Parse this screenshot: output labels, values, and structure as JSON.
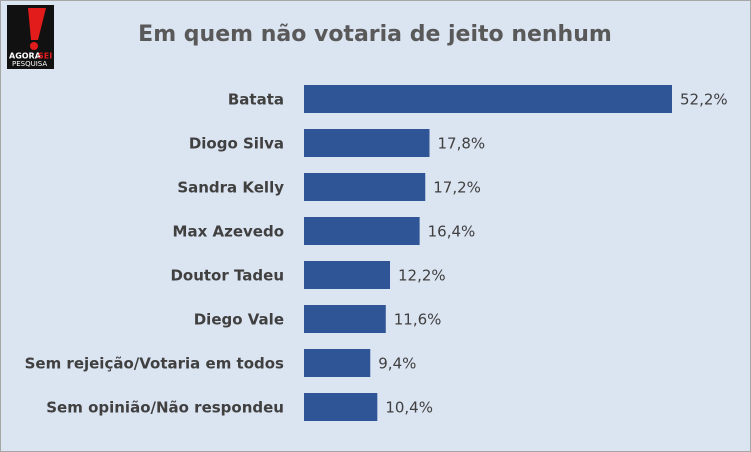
{
  "logo": {
    "brand": "AGORA",
    "brand_accent": "SEI",
    "tagline": "PESQUISA"
  },
  "chart_data": {
    "type": "bar",
    "orientation": "horizontal",
    "title": "Em quem não votaria de jeito nenhum",
    "categories": [
      "Batata",
      "Diogo Silva",
      "Sandra Kelly",
      "Max Azevedo",
      "Doutor Tadeu",
      "Diego Vale",
      "Sem rejeição/Votaria em todos",
      "Sem opinião/Não respondeu"
    ],
    "values": [
      52.2,
      17.8,
      17.2,
      16.4,
      12.2,
      11.6,
      9.4,
      10.4
    ],
    "value_labels": [
      "52,2%",
      "17,8%",
      "17,2%",
      "16,4%",
      "12,2%",
      "11,6%",
      "9,4%",
      "10,4%"
    ],
    "color": "#2f5597"
  }
}
